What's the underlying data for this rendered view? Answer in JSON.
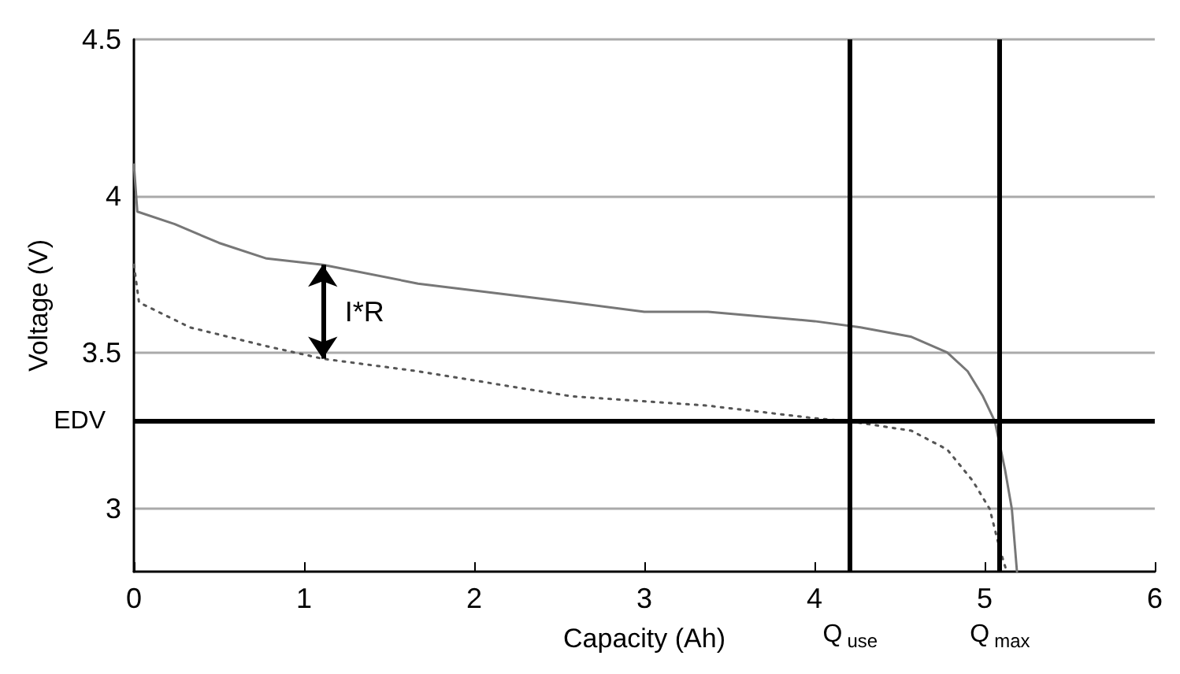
{
  "chart_data": {
    "type": "line",
    "xlabel": "Capacity (Ah)",
    "ylabel": "Voltage (V)",
    "xlim": [
      0,
      6
    ],
    "ylim": [
      2.8,
      4.5
    ],
    "xticks": [
      0,
      1,
      2,
      3,
      4,
      5,
      6
    ],
    "yticks": [
      3,
      3.5,
      4,
      4.5
    ],
    "grid": "y",
    "marker": "none",
    "series": [
      {
        "color": "#777777",
        "line_style": "solid",
        "x": [
          0,
          0.02,
          0.24,
          0.5,
          0.78,
          1.11,
          1.67,
          2.57,
          3,
          3.375,
          4,
          4.27,
          4.57,
          4.78,
          4.9,
          4.99,
          5.06,
          5.12,
          5.16,
          5.19
        ],
        "values": [
          4.1,
          3.95,
          3.91,
          3.85,
          3.8,
          3.78,
          3.72,
          3.66,
          3.63,
          3.63,
          3.6,
          3.58,
          3.55,
          3.5,
          3.44,
          3.36,
          3.28,
          3.125,
          3.0,
          2.8
        ]
      },
      {
        "color": "#555555",
        "line_style": "dotted",
        "x": [
          0,
          0.03,
          0.33,
          0.78,
          1.11,
          1.67,
          2.57,
          3.375,
          4,
          4.21,
          4.57,
          4.78,
          4.93,
          5.03,
          5.09,
          5.13
        ],
        "values": [
          3.78,
          3.66,
          3.58,
          3.52,
          3.48,
          3.44,
          3.36,
          3.33,
          3.29,
          3.28,
          3.25,
          3.19,
          3.09,
          3.0,
          2.87,
          2.8
        ]
      }
    ],
    "ref_lines": [
      {
        "axis": "y",
        "value": 3.28,
        "label": "EDV",
        "color": "#000000"
      },
      {
        "axis": "x",
        "value": 4.21,
        "label": "Q$_{use}$",
        "color": "#000000"
      },
      {
        "axis": "x",
        "value": 5.09,
        "label": "Q$_{max}$",
        "color": "#000000"
      }
    ],
    "annotations": [
      {
        "text": "I*R",
        "x": 1.11,
        "y": 3.78
      }
    ]
  }
}
